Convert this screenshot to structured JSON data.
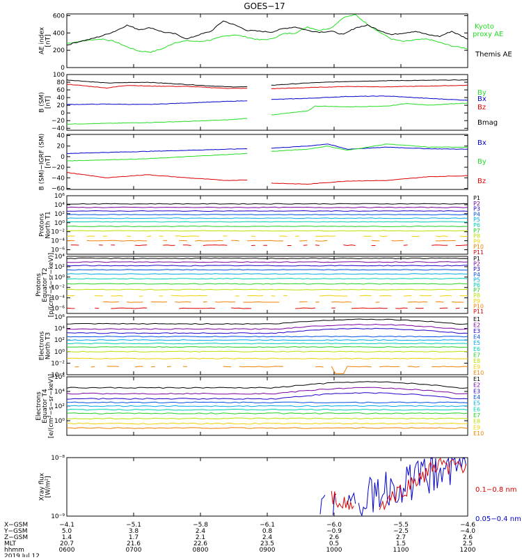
{
  "title": "GOES−17",
  "colors": {
    "black": "#000000",
    "green": "#22dd22",
    "blue": "#0000cc",
    "red": "#dd0000",
    "channels": [
      "#000000",
      "#7a00a0",
      "#2000c8",
      "#0050e8",
      "#00a8e8",
      "#00d0b0",
      "#20d020",
      "#b8e000",
      "#f0d000",
      "#f08000",
      "#e00000"
    ]
  },
  "chart_data": [
    {
      "type": "line",
      "title": "AE index",
      "ylabel": "AE index",
      "yunit": "[nT]",
      "ylim": [
        0,
        620
      ],
      "yticks": [
        "600",
        "400",
        "200",
        "0"
      ],
      "ytick_values": [
        600,
        400,
        200,
        0
      ],
      "legend": [
        {
          "name": "Kyoto",
          "color_key": "green"
        },
        {
          "name": "proxy AE",
          "color_key": "green"
        },
        {
          "name": "Themis AE",
          "color_key": "black"
        }
      ],
      "series": [
        {
          "name": "Kyoto proxy AE",
          "color_key": "green",
          "x": [
            0,
            0.03,
            0.06,
            0.09,
            0.12,
            0.15,
            0.18,
            0.21,
            0.24,
            0.27,
            0.3,
            0.33,
            0.36,
            0.39,
            0.42,
            0.45,
            0.48,
            0.51,
            0.54,
            0.57,
            0.6,
            0.63,
            0.66,
            0.69,
            0.72,
            0.75,
            0.78,
            0.81,
            0.84,
            0.87,
            0.9,
            0.93,
            0.96,
            1.0
          ],
          "values": [
            280,
            300,
            320,
            330,
            300,
            240,
            190,
            180,
            220,
            290,
            310,
            300,
            320,
            360,
            380,
            350,
            320,
            330,
            390,
            400,
            470,
            430,
            460,
            580,
            610,
            500,
            410,
            330,
            300,
            320,
            330,
            290,
            250,
            220
          ]
        },
        {
          "name": "Themis AE",
          "color_key": "black",
          "x": [
            0,
            0.03,
            0.06,
            0.09,
            0.12,
            0.15,
            0.18,
            0.21,
            0.24,
            0.27,
            0.3,
            0.33,
            0.36,
            0.39,
            0.42,
            0.45,
            0.48,
            0.51,
            0.54,
            0.57,
            0.6,
            0.63,
            0.66,
            0.69,
            0.72,
            0.75,
            0.78,
            0.81,
            0.84,
            0.87,
            0.9,
            0.93,
            0.96,
            1.0
          ],
          "values": [
            260,
            300,
            330,
            370,
            420,
            490,
            440,
            460,
            410,
            390,
            330,
            380,
            420,
            540,
            490,
            430,
            420,
            410,
            450,
            470,
            430,
            410,
            420,
            380,
            460,
            490,
            430,
            380,
            400,
            420,
            380,
            360,
            420,
            330
          ]
        }
      ]
    },
    {
      "type": "line",
      "title": "B (SM)",
      "ylabel": "B (SM)",
      "yunit": "[nT]",
      "ylim": [
        -45,
        100
      ],
      "yticks": [
        "100",
        "80",
        "60",
        "40",
        "20",
        "0",
        "−20",
        "−40"
      ],
      "ytick_values": [
        100,
        80,
        60,
        40,
        20,
        0,
        -20,
        -40
      ],
      "gap": [
        0.45,
        0.51
      ],
      "legend": [
        {
          "name": "Bx",
          "color_key": "blue"
        },
        {
          "name": "By",
          "color_key": "green"
        },
        {
          "name": "Bz",
          "color_key": "red"
        },
        {
          "name": "Bmag",
          "color_key": "black"
        }
      ],
      "series": [
        {
          "name": "Bmag",
          "color_key": "black",
          "x": [
            0,
            0.1,
            0.2,
            0.3,
            0.4,
            0.45,
            0.51,
            0.6,
            0.7,
            0.8,
            0.9,
            1.0
          ],
          "values": [
            86,
            78,
            80,
            74,
            68,
            68,
            72,
            78,
            82,
            84,
            85,
            86
          ]
        },
        {
          "name": "Bz",
          "color_key": "red",
          "x": [
            0,
            0.1,
            0.15,
            0.2,
            0.3,
            0.4,
            0.45,
            0.51,
            0.6,
            0.7,
            0.8,
            0.9,
            1.0
          ],
          "values": [
            75,
            65,
            72,
            70,
            69,
            64,
            64,
            63,
            66,
            69,
            68,
            70,
            72
          ]
        },
        {
          "name": "Bx",
          "color_key": "blue",
          "x": [
            0,
            0.1,
            0.2,
            0.3,
            0.4,
            0.45,
            0.51,
            0.6,
            0.7,
            0.8,
            0.9,
            1.0
          ],
          "values": [
            22,
            23,
            22,
            26,
            30,
            32,
            35,
            38,
            43,
            44,
            38,
            33
          ]
        },
        {
          "name": "By",
          "color_key": "green",
          "x": [
            0,
            0.1,
            0.2,
            0.3,
            0.4,
            0.45,
            0.51,
            0.6,
            0.62,
            0.7,
            0.8,
            0.85,
            0.9,
            1.0
          ],
          "values": [
            -29,
            -27,
            -25,
            -22,
            -18,
            -14,
            -5,
            5,
            18,
            16,
            18,
            25,
            20,
            26
          ]
        }
      ]
    },
    {
      "type": "line",
      "title": "B (SM)-IGRF (SM)",
      "ylabel": "B (SM)−IGRF (SM)",
      "yunit": "[nT]",
      "ylim": [
        -62,
        42
      ],
      "yticks": [
        "40",
        "20",
        "0",
        "−20",
        "−40",
        "−60"
      ],
      "ytick_values": [
        40,
        20,
        0,
        -20,
        -40,
        -60
      ],
      "gap": [
        0.45,
        0.51
      ],
      "legend": [
        {
          "name": "Bx",
          "color_key": "blue"
        },
        {
          "name": "By",
          "color_key": "green"
        },
        {
          "name": "Bz",
          "color_key": "red"
        }
      ],
      "series": [
        {
          "name": "Bx",
          "color_key": "blue",
          "x": [
            0,
            0.1,
            0.2,
            0.3,
            0.4,
            0.45,
            0.51,
            0.6,
            0.65,
            0.7,
            0.8,
            0.9,
            1.0
          ],
          "values": [
            6,
            8,
            10,
            12,
            14,
            15,
            16,
            20,
            24,
            14,
            18,
            15,
            14
          ]
        },
        {
          "name": "By",
          "color_key": "green",
          "x": [
            0,
            0.1,
            0.2,
            0.3,
            0.4,
            0.45,
            0.51,
            0.6,
            0.65,
            0.7,
            0.8,
            0.9,
            1.0
          ],
          "values": [
            -8,
            -6,
            -4,
            0,
            4,
            6,
            10,
            14,
            20,
            12,
            24,
            18,
            18
          ]
        },
        {
          "name": "Bz",
          "color_key": "red",
          "x": [
            0,
            0.1,
            0.2,
            0.3,
            0.4,
            0.45,
            0.51,
            0.6,
            0.7,
            0.8,
            0.9,
            1.0
          ],
          "values": [
            -30,
            -40,
            -34,
            -40,
            -45,
            -44,
            -50,
            -52,
            -46,
            -45,
            -38,
            -36
          ]
        }
      ]
    },
    {
      "type": "line",
      "title": "Protons North T1",
      "ylabel": "Protons",
      "ylabel2": "North T1",
      "yscale": "log",
      "ylim_exp": [
        -7,
        6
      ],
      "yticks": [
        "10⁶",
        "10⁴",
        "10²",
        "10⁰",
        "10⁻²",
        "10⁻⁴",
        "10⁻⁶"
      ],
      "ytick_exps": [
        6,
        4,
        2,
        0,
        -2,
        -4,
        -6
      ],
      "channels": [
        "P1",
        "P2",
        "P3",
        "P4",
        "P5",
        "P6",
        "P7",
        "P8",
        "P9",
        "P10",
        "P11"
      ],
      "channel_log_levels": [
        4.2,
        3.4,
        2.6,
        1.8,
        1.0,
        0.2,
        -0.8,
        -1.8,
        -3.0,
        -4.0,
        -5.0
      ],
      "gappy_channels": [
        8,
        9,
        10
      ]
    },
    {
      "type": "line",
      "title": "Protons Equator T2",
      "ylabel": "Protons",
      "ylabel2": "Equator T2",
      "ylabel3": "[p/(cm²−s−sr−keV)]",
      "yscale": "log",
      "ylim_exp": [
        -7,
        4
      ],
      "yticks": [
        "10⁴",
        "10²",
        "10⁰",
        "10⁻²",
        "10⁻⁴",
        "10⁻⁶"
      ],
      "ytick_exps": [
        4,
        2,
        0,
        -2,
        -4,
        -6
      ],
      "channels": [
        "P1",
        "P2",
        "P3",
        "P4",
        "P5",
        "P6",
        "P7",
        "P8",
        "P9",
        "P10",
        "P11"
      ],
      "channel_log_levels": [
        3.6,
        2.9,
        2.2,
        1.4,
        0.6,
        -0.3,
        -1.3,
        -2.4,
        -3.6,
        -4.8,
        -6.0
      ],
      "gappy_channels": [
        8,
        9,
        10
      ]
    },
    {
      "type": "line",
      "title": "Electrons North T3",
      "ylabel": "Electrons",
      "ylabel2": "North T3",
      "yscale": "log",
      "ylim_exp": [
        -4,
        6
      ],
      "yticks": [
        "10⁶",
        "10⁴",
        "10²",
        "10⁰",
        "10⁻²",
        "10⁻⁴"
      ],
      "ytick_exps": [
        6,
        4,
        2,
        0,
        -2,
        -4
      ],
      "channels": [
        "E1",
        "E2",
        "E3",
        "E4",
        "E5",
        "E6",
        "E7",
        "E8",
        "E9",
        "E10"
      ],
      "channel_log_levels": [
        4.8,
        3.9,
        3.2,
        2.6,
        2.0,
        1.4,
        0.8,
        0.0,
        -1.2,
        -2.6
      ],
      "gappy_channels": [
        9
      ]
    },
    {
      "type": "line",
      "title": "Electrons Equator T4",
      "ylabel": "Electrons",
      "ylabel2": "Equator T4",
      "ylabel3": "[e/(cm²−s−sr−keV)]",
      "yscale": "log",
      "ylim_exp": [
        -2,
        6
      ],
      "yticks": [
        "10⁶",
        "10⁴",
        "10²",
        "10⁰"
      ],
      "ytick_exps": [
        6,
        4,
        2,
        0
      ],
      "channels": [
        "E1",
        "E2",
        "E3",
        "E4",
        "E5",
        "E6",
        "E7",
        "E8",
        "E9",
        "E10"
      ],
      "channel_log_levels": [
        4.5,
        3.7,
        3.0,
        2.5,
        2.0,
        1.5,
        1.0,
        0.3,
        -0.4,
        -1.0
      ],
      "gappy_channels": []
    },
    {
      "type": "line",
      "title": "Xray flux",
      "ylabel": "Xray flux",
      "yunit": "[W/m²]",
      "yscale": "log",
      "ylim_exp": [
        -9,
        -8
      ],
      "yticks": [
        "10⁻⁸",
        "10⁻⁹"
      ],
      "ytick_exps": [
        -8,
        -9
      ],
      "legend": [
        {
          "name": "0.1−0.8 nm",
          "color_key": "red"
        },
        {
          "name": "0.05−0.4 nm",
          "color_key": "blue"
        }
      ]
    }
  ],
  "xaxis": {
    "row_labels": [
      "X−GSM",
      "Y−GSM",
      "Z−GSM",
      "MLT",
      "hhmm"
    ],
    "date": "2019 Jul 12",
    "ticks": [
      {
        "values": [
          "−4.1",
          "5.0",
          "1.4",
          "20.7",
          "0600"
        ]
      },
      {
        "values": [
          "−5.1",
          "3.8",
          "1.7",
          "21.6",
          "0700"
        ]
      },
      {
        "values": [
          "−5.8",
          "2.4",
          "2.1",
          "22.6",
          "0800"
        ]
      },
      {
        "values": [
          "−6.1",
          "0.8",
          "2.4",
          "23.5",
          "0900"
        ]
      },
      {
        "values": [
          "−6.0",
          "−0.9",
          "2.6",
          "0.5",
          "1000"
        ]
      },
      {
        "values": [
          "−5.5",
          "−2.5",
          "2.7",
          "1.5",
          "1100"
        ]
      },
      {
        "values": [
          "−4.6",
          "−4.0",
          "2.6",
          "2.5",
          "1200"
        ]
      }
    ]
  }
}
